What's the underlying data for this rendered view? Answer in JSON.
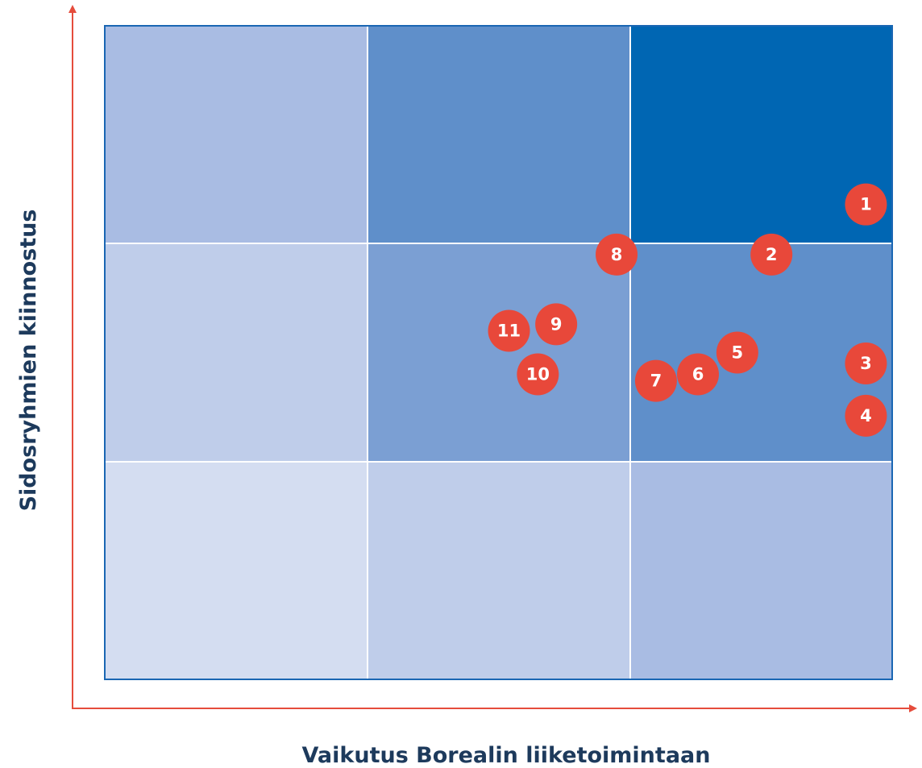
{
  "chart_data": {
    "type": "scatter",
    "x_label": "Vaikutus Borealin liiketoimintaan",
    "y_label": "Sidosryhmien kiinnostus",
    "labels": [
      "1",
      "2",
      "3",
      "4",
      "5",
      "6",
      "7",
      "8",
      "9",
      "10",
      "11"
    ],
    "x": [
      2.9,
      2.54,
      2.9,
      2.9,
      2.41,
      2.26,
      2.1,
      1.95,
      1.72,
      1.65,
      1.54
    ],
    "values": [
      2.18,
      1.95,
      1.45,
      1.21,
      1.5,
      1.4,
      1.37,
      1.95,
      1.63,
      1.4,
      1.6
    ],
    "color": "#e8483a",
    "xlim": [
      0,
      3
    ],
    "ylim": [
      0,
      3
    ]
  }
}
